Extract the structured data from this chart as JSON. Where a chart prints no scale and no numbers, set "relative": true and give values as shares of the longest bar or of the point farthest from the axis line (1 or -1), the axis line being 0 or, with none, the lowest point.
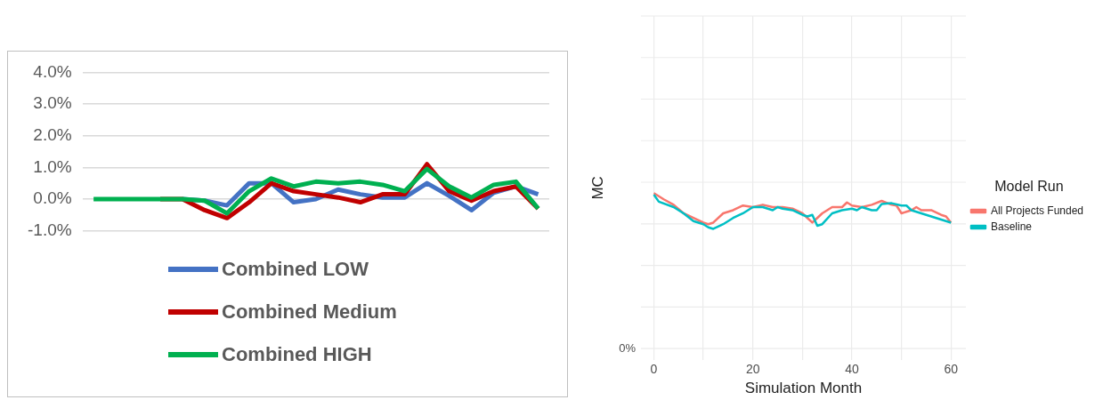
{
  "chart_data": [
    {
      "type": "line",
      "categories": [
        null,
        null,
        null,
        null,
        null,
        null,
        null,
        null,
        null,
        null,
        null,
        null,
        null,
        null,
        null,
        null,
        null,
        null,
        null,
        null,
        null
      ],
      "series": [
        {
          "name": "Combined LOW",
          "color": "#4472c4",
          "values": [
            null,
            null,
            null,
            null,
            0,
            -0.05,
            -0.2,
            0.5,
            0.5,
            -0.1,
            0.0,
            0.3,
            0.15,
            0.05,
            0.05,
            0.5,
            0.1,
            -0.35,
            0.2,
            0.4,
            0.15
          ]
        },
        {
          "name": "Combined Medium",
          "color": "#c00000",
          "values": [
            null,
            null,
            null,
            0,
            0,
            -0.35,
            -0.6,
            -0.1,
            0.5,
            0.25,
            0.15,
            0.05,
            -0.1,
            0.15,
            0.15,
            1.1,
            0.25,
            -0.05,
            0.25,
            0.4,
            -0.3
          ]
        },
        {
          "name": "Combined HIGH",
          "color": "#00b050",
          "values": [
            0,
            0,
            0,
            0,
            0,
            -0.05,
            -0.45,
            0.25,
            0.65,
            0.4,
            0.55,
            0.5,
            0.55,
            0.45,
            0.25,
            0.95,
            0.4,
            0.05,
            0.45,
            0.55,
            -0.3
          ]
        }
      ],
      "ylim": [
        -1,
        4
      ],
      "yticks": [
        {
          "value": -1,
          "label": "-1.0%"
        },
        {
          "value": 0,
          "label": "0.0%"
        },
        {
          "value": 1,
          "label": "1.0%"
        },
        {
          "value": 2,
          "label": "2.0%"
        },
        {
          "value": 3,
          "label": "3.0%"
        },
        {
          "value": 4,
          "label": "4.0%"
        }
      ],
      "grid": "y",
      "legend": "bottom",
      "tick_labels": "y"
    },
    {
      "type": "line",
      "xlabel": "Simulation Month",
      "ylabel": "MC",
      "legend_title": "Model Run",
      "relative": true,
      "series": [
        {
          "name": "All Projects Funded",
          "color": "#f8766d",
          "x": [
            0,
            2,
            4,
            6,
            8,
            10,
            11,
            12,
            14,
            16,
            18,
            20,
            22,
            24,
            26,
            28,
            30,
            31,
            32,
            33,
            34,
            36,
            38,
            39,
            40,
            42,
            44,
            46,
            48,
            49,
            50,
            52,
            53,
            54,
            56,
            58,
            59,
            60
          ],
          "values": [
            1,
            0.96,
            0.925,
            0.87,
            0.84,
            0.81,
            0.8,
            0.81,
            0.87,
            0.89,
            0.92,
            0.91,
            0.925,
            0.91,
            0.91,
            0.9,
            0.87,
            0.84,
            0.81,
            0.84,
            0.87,
            0.91,
            0.91,
            0.94,
            0.92,
            0.91,
            0.925,
            0.95,
            0.925,
            0.92,
            0.87,
            0.89,
            0.91,
            0.89,
            0.89,
            0.86,
            0.85,
            0.81
          ]
        },
        {
          "name": "Baseline",
          "color": "#00bfc4",
          "x": [
            0,
            1,
            4,
            6,
            8,
            9,
            10,
            11,
            12,
            14,
            16,
            18,
            20,
            22,
            24,
            25,
            26,
            28,
            30,
            31,
            32,
            33,
            34,
            36,
            38,
            40,
            41,
            42,
            44,
            45,
            46,
            48,
            50,
            51,
            52,
            54,
            56,
            58,
            60
          ],
          "values": [
            0.99,
            0.945,
            0.91,
            0.87,
            0.82,
            0.81,
            0.8,
            0.78,
            0.77,
            0.8,
            0.84,
            0.87,
            0.91,
            0.91,
            0.89,
            0.91,
            0.9,
            0.89,
            0.86,
            0.85,
            0.86,
            0.79,
            0.8,
            0.87,
            0.89,
            0.9,
            0.89,
            0.91,
            0.89,
            0.89,
            0.93,
            0.935,
            0.92,
            0.92,
            0.89,
            0.87,
            0.85,
            0.83,
            0.81
          ]
        }
      ],
      "xlim": [
        -2.6,
        63
      ],
      "xticks": [
        0,
        {
          "value": 10,
          "label": null
        },
        20,
        {
          "value": 30,
          "label": null
        },
        40,
        {
          "value": 50,
          "label": null
        },
        60
      ],
      "annotations": [
        "0%"
      ],
      "grid": true,
      "legend": "right",
      "marker": "none",
      "line_style": "solid"
    }
  ]
}
